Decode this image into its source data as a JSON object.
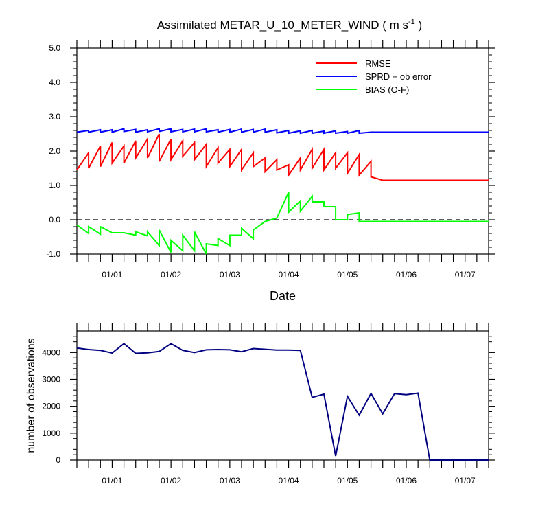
{
  "chart_data": [
    {
      "type": "line",
      "title": "Assimilated METAR_U_10_METER_WIND ( m s",
      "title_superscript": "-1",
      "title_suffix": " )",
      "xlabel": "Date",
      "ylabel": "",
      "xlim": [
        0,
        35
      ],
      "ylim": [
        -1,
        5
      ],
      "yticks": [
        -1,
        0,
        1,
        2,
        3,
        4,
        5
      ],
      "ytick_labels": [
        "-1.0",
        "0.0",
        "1.0",
        "2.0",
        "3.0",
        "4.0",
        "5.0"
      ],
      "xtick_positions": [
        3,
        8,
        13,
        18,
        23,
        28,
        33
      ],
      "xtick_labels": [
        "01/01",
        "01/02",
        "01/03",
        "01/04",
        "01/05",
        "01/06",
        "01/07"
      ],
      "zero_line": true,
      "legend_position": "top-right",
      "series": [
        {
          "name": "RMSE",
          "color": "#ff0000",
          "x": [
            0,
            1,
            1,
            2,
            2,
            3,
            3,
            4,
            4,
            5,
            5,
            6,
            6,
            7,
            7,
            8,
            8,
            9,
            9,
            10,
            10,
            11,
            11,
            12,
            12,
            13,
            13,
            14,
            14,
            15,
            15,
            16,
            16,
            17,
            17,
            18,
            18,
            19,
            19,
            20,
            20,
            21,
            21,
            22,
            22,
            23,
            23,
            24,
            24,
            25,
            25,
            26,
            26,
            27,
            27,
            28,
            28,
            29,
            29,
            30,
            30,
            31,
            31,
            32,
            32,
            33,
            33,
            34,
            34,
            35
          ],
          "y": [
            1.45,
            1.95,
            1.5,
            2.15,
            1.55,
            2.25,
            1.65,
            2.15,
            1.65,
            2.3,
            1.8,
            2.35,
            1.8,
            2.5,
            1.7,
            2.35,
            1.75,
            2.3,
            1.85,
            2.25,
            1.75,
            2.2,
            1.55,
            2.1,
            1.65,
            2.05,
            1.55,
            2.05,
            1.45,
            1.95,
            1.55,
            1.8,
            1.4,
            1.75,
            1.45,
            1.6,
            1.3,
            1.8,
            1.45,
            2.05,
            1.5,
            2.05,
            1.45,
            1.95,
            1.5,
            1.95,
            1.35,
            1.9,
            1.3,
            1.7,
            1.25,
            1.15,
            1.15,
            1.15,
            1.15,
            1.15,
            1.15,
            1.15,
            1.15,
            1.15,
            1.15,
            1.15,
            1.15,
            1.15,
            1.15,
            1.15,
            1.15,
            1.15,
            1.15,
            1.15
          ]
        },
        {
          "name": "SPRD + ob error",
          "color": "#0000ff",
          "x": [
            0,
            1,
            1,
            2,
            2,
            3,
            3,
            4,
            4,
            5,
            5,
            6,
            6,
            7,
            7,
            8,
            8,
            9,
            9,
            10,
            10,
            11,
            11,
            12,
            12,
            13,
            13,
            14,
            14,
            15,
            15,
            16,
            16,
            17,
            17,
            18,
            18,
            19,
            19,
            20,
            20,
            21,
            21,
            22,
            22,
            23,
            23,
            24,
            24,
            25,
            25,
            26,
            26,
            27,
            27,
            28,
            28,
            29,
            29,
            30,
            30,
            31,
            31,
            32,
            32,
            33,
            33,
            34,
            34,
            35
          ],
          "y": [
            2.55,
            2.6,
            2.55,
            2.62,
            2.55,
            2.62,
            2.55,
            2.65,
            2.57,
            2.63,
            2.55,
            2.62,
            2.56,
            2.65,
            2.57,
            2.65,
            2.56,
            2.63,
            2.56,
            2.64,
            2.56,
            2.65,
            2.56,
            2.62,
            2.55,
            2.63,
            2.55,
            2.64,
            2.55,
            2.63,
            2.55,
            2.64,
            2.55,
            2.62,
            2.53,
            2.6,
            2.52,
            2.59,
            2.52,
            2.6,
            2.52,
            2.58,
            2.52,
            2.59,
            2.52,
            2.57,
            2.52,
            2.6,
            2.52,
            2.55,
            2.55,
            2.55,
            2.55,
            2.55,
            2.55,
            2.55,
            2.55,
            2.55,
            2.55,
            2.55,
            2.55,
            2.55,
            2.55,
            2.55,
            2.55,
            2.55,
            2.55,
            2.55,
            2.55,
            2.55
          ]
        },
        {
          "name": "BIAS (O-F)",
          "color": "#00ff00",
          "x": [
            0,
            1,
            1,
            2,
            2,
            3,
            4,
            5,
            5,
            6,
            6,
            7,
            7,
            8,
            8,
            9,
            9,
            10,
            10,
            11,
            11,
            12,
            12,
            13,
            13,
            14,
            14,
            15,
            15,
            16,
            16,
            17,
            17,
            18,
            18,
            19,
            19,
            20,
            20,
            21,
            21,
            22,
            22,
            23,
            23,
            24,
            24,
            25,
            25,
            26,
            26,
            27,
            27,
            28,
            28,
            29,
            29,
            30,
            30,
            31,
            31,
            32,
            32,
            33,
            33,
            34,
            34,
            35
          ],
          "y": [
            -0.15,
            -0.4,
            -0.2,
            -0.42,
            -0.2,
            -0.38,
            -0.38,
            -0.45,
            -0.35,
            -0.47,
            -0.35,
            -0.75,
            -0.3,
            -0.95,
            -0.6,
            -0.9,
            -0.45,
            -0.9,
            -0.35,
            -1.0,
            -0.7,
            -0.75,
            -0.55,
            -0.75,
            -0.45,
            -0.45,
            -0.25,
            -0.55,
            -0.3,
            -0.05,
            -0.05,
            0.05,
            0.05,
            0.8,
            0.22,
            0.55,
            0.25,
            0.68,
            0.52,
            0.52,
            0.38,
            0.38,
            0.0,
            0.0,
            0.15,
            0.2,
            -0.05,
            -0.05,
            -0.05,
            -0.05,
            -0.05,
            -0.05,
            -0.05,
            -0.05,
            -0.05,
            -0.05,
            -0.05,
            -0.05,
            -0.05,
            -0.05,
            -0.05,
            -0.05,
            -0.05,
            -0.05,
            -0.05,
            -0.05,
            -0.05,
            -0.05
          ]
        }
      ]
    },
    {
      "type": "line",
      "title": "",
      "xlabel": "",
      "ylabel": "number of observations",
      "xlim": [
        0,
        35
      ],
      "ylim": [
        0,
        4800
      ],
      "yticks": [
        0,
        1000,
        2000,
        3000,
        4000
      ],
      "ytick_labels": [
        "0",
        "1000",
        "2000",
        "3000",
        "4000"
      ],
      "xtick_positions": [
        3,
        8,
        13,
        18,
        23,
        28,
        33
      ],
      "xtick_labels": [
        "01/01",
        "01/02",
        "01/03",
        "01/04",
        "01/05",
        "01/06",
        "01/07"
      ],
      "series": [
        {
          "name": "observations",
          "color": "#000080",
          "x": [
            0,
            1,
            2,
            3,
            4,
            5,
            6,
            7,
            8,
            9,
            10,
            11,
            12,
            13,
            14,
            15,
            16,
            17,
            18,
            19,
            20,
            21,
            22,
            23,
            24,
            25,
            26,
            27,
            28,
            29,
            30,
            31,
            32,
            33,
            34,
            35
          ],
          "y": [
            4170,
            4110,
            4080,
            3980,
            4330,
            3970,
            3990,
            4040,
            4330,
            4080,
            4000,
            4100,
            4110,
            4100,
            4030,
            4150,
            4120,
            4090,
            4090,
            4080,
            2330,
            2450,
            150,
            2370,
            1670,
            2480,
            1720,
            2470,
            2430,
            2490,
            0,
            0,
            0,
            0,
            0,
            0
          ]
        }
      ]
    }
  ]
}
